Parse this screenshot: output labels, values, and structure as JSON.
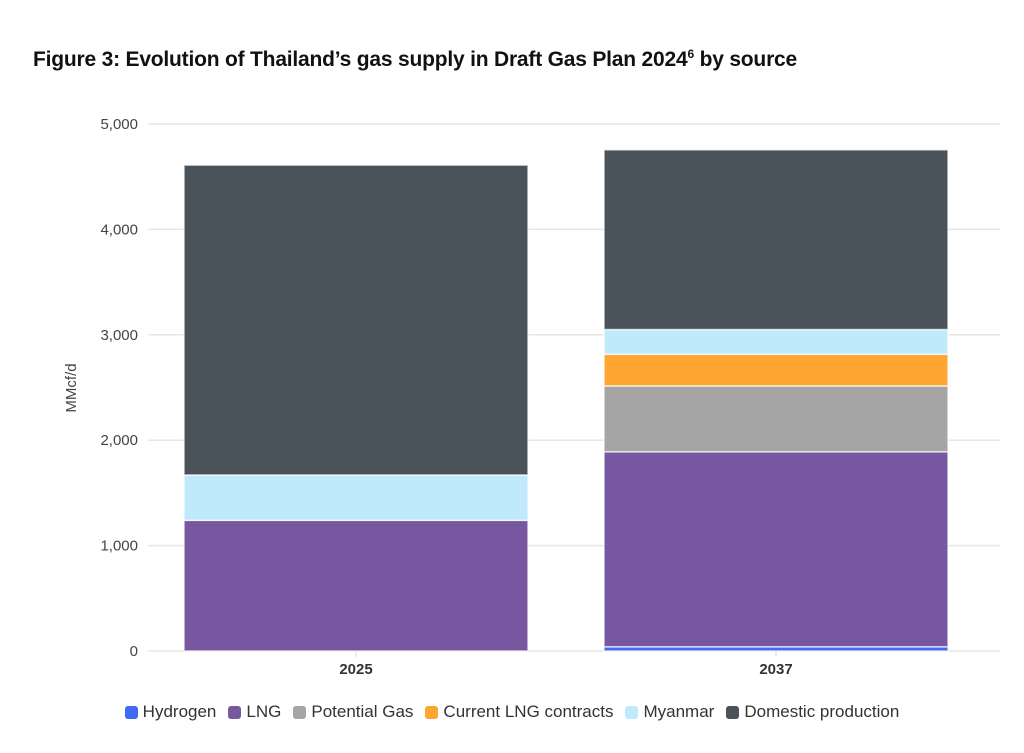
{
  "title": {
    "main": "Figure 3: Evolution of Thailand’s gas supply in Draft Gas Plan 2024",
    "superscript": "6",
    "tail": " by source"
  },
  "chart_data": {
    "type": "bar",
    "stacked": true,
    "categories": [
      "2025",
      "2037"
    ],
    "ylabel": "MMcf/d",
    "xlabel": "",
    "ylim": [
      0,
      5000
    ],
    "yticks": [
      "0",
      "1,000",
      "2,000",
      "3,000",
      "4,000",
      "5,000"
    ],
    "grid": true,
    "legend": "bottom",
    "series": [
      {
        "name": "Hydrogen",
        "color": "#3f6bf5",
        "values": [
          0,
          40
        ]
      },
      {
        "name": "LNG",
        "color": "#7758a0",
        "values": [
          1240,
          1850
        ]
      },
      {
        "name": "Potential Gas",
        "color": "#a5a5a5",
        "values": [
          0,
          625
        ]
      },
      {
        "name": "Current LNG contracts",
        "color": "#ffa630",
        "values": [
          0,
          300
        ]
      },
      {
        "name": "Myanmar",
        "color": "#c0e9fb",
        "values": [
          430,
          235
        ]
      },
      {
        "name": "Domestic production",
        "color": "#4a525a",
        "values": [
          2940,
          1705
        ]
      }
    ]
  }
}
